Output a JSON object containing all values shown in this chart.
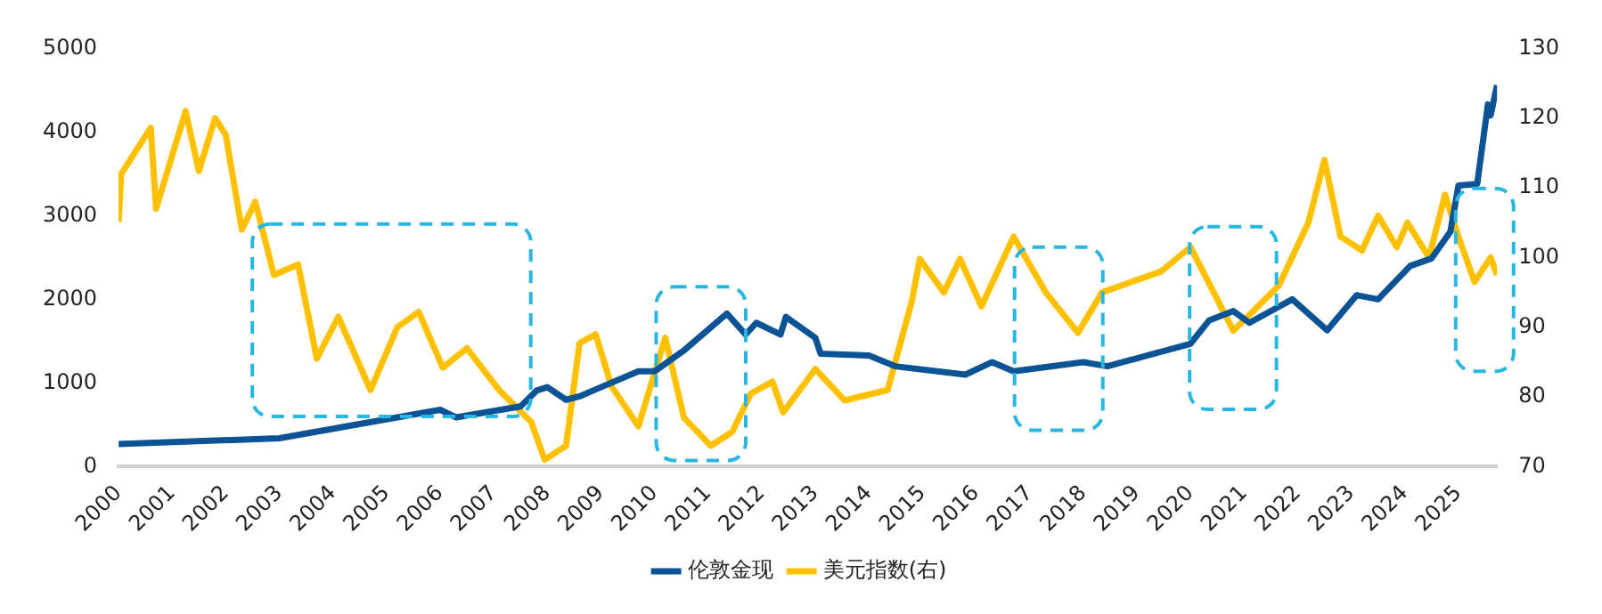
{
  "chart_data": {
    "type": "line",
    "xlim": [
      2000,
      2025.72
    ],
    "xticks": [
      2000,
      2001,
      2002,
      2003,
      2004,
      2005,
      2006,
      2007,
      2008,
      2009,
      2010,
      2011,
      2012,
      2013,
      2014,
      2015,
      2016,
      2017,
      2018,
      2019,
      2020,
      2021,
      2022,
      2023,
      2024,
      2025
    ],
    "ylim": [
      0,
      5000
    ],
    "yticks": [
      0,
      1000,
      2000,
      3000,
      4000,
      5000
    ],
    "y2lim": [
      70,
      130
    ],
    "y2ticks": [
      70,
      80,
      90,
      100,
      110,
      120,
      130
    ],
    "legend": "bottom",
    "grid": false,
    "marker": "none",
    "line_style": "solid",
    "series": [
      {
        "name": "伦敦金现",
        "color": "#0b5394",
        "x": [
          2000,
          2003,
          2006,
          2006.3,
          2007.5,
          2007.8,
          2008,
          2008.35,
          2008.6,
          2009,
          2009.7,
          2010,
          2010.55,
          2011.35,
          2011.7,
          2011.9,
          2012.35,
          2012.45,
          2013,
          2013.1,
          2014,
          2014.5,
          2015.8,
          2016.3,
          2016.7,
          2018,
          2018.45,
          2019.2,
          2020,
          2020.35,
          2020.8,
          2021.1,
          2021.9,
          2022.55,
          2023.1,
          2023.5,
          2024.1,
          2024.5,
          2024.85,
          2025,
          2025.35,
          2025.55,
          2025.6,
          2025.72
        ],
        "values": [
          270,
          340,
          680,
          590,
          720,
          910,
          950,
          800,
          840,
          950,
          1140,
          1140,
          1390,
          1830,
          1580,
          1720,
          1580,
          1790,
          1540,
          1350,
          1330,
          1200,
          1100,
          1250,
          1140,
          1250,
          1200,
          1330,
          1470,
          1750,
          1860,
          1720,
          2000,
          1630,
          2050,
          2000,
          2400,
          2490,
          2810,
          3360,
          3380,
          4330,
          4200,
          4560
        ]
      },
      {
        "name": "美元指数(右)",
        "color": "#ffc000",
        "axis": "y2",
        "x": [
          2000,
          2000.05,
          2000.6,
          2000.7,
          2001.25,
          2001.5,
          2001.8,
          2002,
          2002.3,
          2002.55,
          2002.9,
          2003.35,
          2003.7,
          2004.1,
          2004.7,
          2005.2,
          2005.6,
          2006.05,
          2006.5,
          2007.1,
          2007.7,
          2007.95,
          2008.35,
          2008.6,
          2008.9,
          2009.2,
          2009.7,
          2010.2,
          2010.55,
          2011.05,
          2011.45,
          2011.8,
          2012.2,
          2012.4,
          2013,
          2013.55,
          2014.35,
          2014.8,
          2014.95,
          2015.4,
          2015.7,
          2016.1,
          2016.7,
          2017.3,
          2017.9,
          2018.35,
          2019.45,
          2020,
          2020.8,
          2021.65,
          2022.2,
          2022.5,
          2022.8,
          2023.2,
          2023.5,
          2023.85,
          2024.05,
          2024.45,
          2024.75,
          2025,
          2025.3,
          2025.6,
          2025.72
        ],
        "values": [
          105.1,
          112,
          118.6,
          107,
          121,
          112.4,
          120,
          117.6,
          104,
          108,
          97.5,
          99,
          85.5,
          91.5,
          81,
          90,
          92.2,
          84.2,
          87,
          81,
          76.4,
          71,
          73,
          87.7,
          89,
          81.5,
          75.8,
          88.5,
          77,
          73,
          75,
          80.5,
          82.2,
          77.8,
          84,
          79.5,
          81,
          93.7,
          99.8,
          95,
          99.8,
          93,
          103,
          95,
          89.2,
          95,
          98,
          101.5,
          89.5,
          96,
          105,
          114,
          103,
          101,
          106,
          101.5,
          105,
          100,
          109,
          103,
          96.5,
          100,
          97.5
        ]
      }
    ]
  }
}
